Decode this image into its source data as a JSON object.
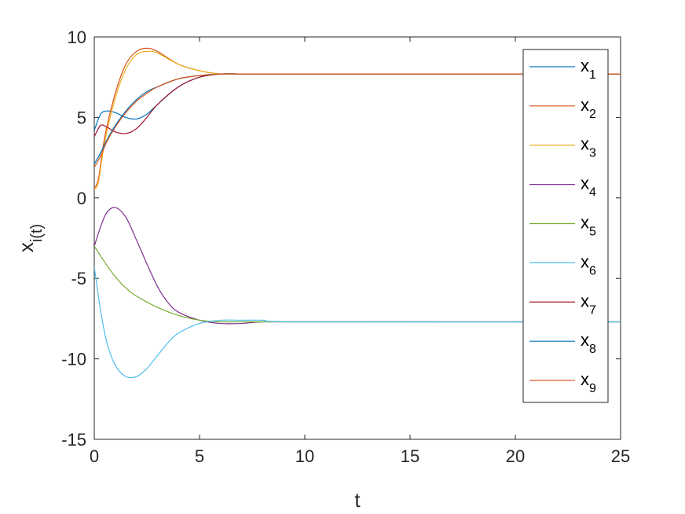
{
  "chart_data": {
    "type": "line",
    "title": "",
    "xlabel": "t",
    "ylabel": "x_i(t)",
    "xlim": [
      0,
      25
    ],
    "ylim": [
      -15,
      10
    ],
    "xticks": [
      0,
      5,
      10,
      15,
      20,
      25
    ],
    "yticks": [
      -15,
      -10,
      -5,
      0,
      5,
      10
    ],
    "grid": false,
    "legend_position": "top-right",
    "series": [
      {
        "name": "x_1",
        "color": "#0072BD",
        "x": [
          0,
          0.3,
          0.6,
          1,
          1.5,
          2,
          2.5,
          3,
          4,
          5,
          6,
          7,
          8,
          10,
          25
        ],
        "y": [
          4.2,
          5.2,
          5.4,
          5.3,
          5.0,
          4.9,
          5.2,
          5.8,
          6.9,
          7.5,
          7.7,
          7.7,
          7.7,
          7.7,
          7.7
        ]
      },
      {
        "name": "x_2",
        "color": "#D95319",
        "x": [
          0,
          0.2,
          0.5,
          1,
          1.5,
          2,
          2.5,
          3,
          4,
          5,
          6,
          7,
          8,
          10,
          25
        ],
        "y": [
          0.6,
          1.2,
          3.8,
          6.5,
          8.3,
          9.1,
          9.3,
          9.1,
          8.3,
          7.9,
          7.7,
          7.7,
          7.7,
          7.7,
          7.7
        ]
      },
      {
        "name": "x_3",
        "color": "#EDB120",
        "x": [
          0,
          0.2,
          0.5,
          1,
          1.5,
          2,
          2.5,
          3,
          4,
          5,
          6,
          7,
          8,
          10,
          25
        ],
        "y": [
          0.5,
          1.0,
          3.5,
          6.2,
          8.0,
          8.9,
          9.1,
          9.0,
          8.3,
          7.9,
          7.7,
          7.7,
          7.7,
          7.7,
          7.7
        ]
      },
      {
        "name": "x_4",
        "color": "#7E2F8E",
        "x": [
          0,
          0.3,
          0.6,
          1,
          1.5,
          2,
          2.5,
          3,
          3.5,
          4,
          5,
          6,
          7,
          8,
          10,
          25
        ],
        "y": [
          -3.0,
          -1.8,
          -0.9,
          -0.6,
          -1.2,
          -2.6,
          -4.1,
          -5.5,
          -6.5,
          -7.1,
          -7.6,
          -7.8,
          -7.8,
          -7.7,
          -7.7,
          -7.7
        ]
      },
      {
        "name": "x_5",
        "color": "#77AC30",
        "x": [
          0,
          0.5,
          1,
          1.5,
          2,
          3,
          4,
          5,
          6,
          7,
          8,
          10,
          25
        ],
        "y": [
          -3.0,
          -4.0,
          -4.9,
          -5.6,
          -6.1,
          -6.8,
          -7.3,
          -7.6,
          -7.7,
          -7.7,
          -7.7,
          -7.7,
          -7.7
        ]
      },
      {
        "name": "x_6",
        "color": "#4DBEEE",
        "x": [
          0,
          0.3,
          0.6,
          1,
          1.5,
          2,
          2.5,
          3,
          3.5,
          4,
          5,
          6,
          7,
          8,
          10,
          25
        ],
        "y": [
          -4.3,
          -7.0,
          -9.0,
          -10.4,
          -11.1,
          -11.1,
          -10.6,
          -9.8,
          -9.0,
          -8.4,
          -7.8,
          -7.6,
          -7.6,
          -7.6,
          -7.7,
          -7.7
        ]
      },
      {
        "name": "x_7",
        "color": "#A2142F",
        "x": [
          0,
          0.3,
          0.6,
          1,
          1.5,
          2,
          2.5,
          3,
          4,
          5,
          6,
          7,
          8,
          10,
          25
        ],
        "y": [
          3.8,
          4.5,
          4.4,
          4.1,
          4.0,
          4.3,
          5.0,
          5.8,
          6.9,
          7.5,
          7.7,
          7.7,
          7.7,
          7.7,
          7.7
        ]
      },
      {
        "name": "x_8",
        "color": "#0072BD",
        "x": [
          0,
          0.3,
          0.6,
          1,
          1.5,
          2,
          2.5,
          3,
          4,
          5,
          6,
          7,
          8,
          10,
          25
        ],
        "y": [
          2.1,
          2.8,
          3.6,
          4.5,
          5.4,
          6.1,
          6.6,
          6.9,
          7.4,
          7.6,
          7.7,
          7.7,
          7.7,
          7.7,
          7.7
        ]
      },
      {
        "name": "x_9",
        "color": "#D95319",
        "x": [
          0,
          0.3,
          0.6,
          1,
          1.5,
          2,
          2.5,
          3,
          4,
          5,
          6,
          7,
          8,
          10,
          25
        ],
        "y": [
          1.9,
          2.6,
          3.5,
          4.4,
          5.3,
          6.0,
          6.5,
          6.9,
          7.4,
          7.6,
          7.7,
          7.7,
          7.7,
          7.7,
          7.7
        ]
      }
    ]
  }
}
